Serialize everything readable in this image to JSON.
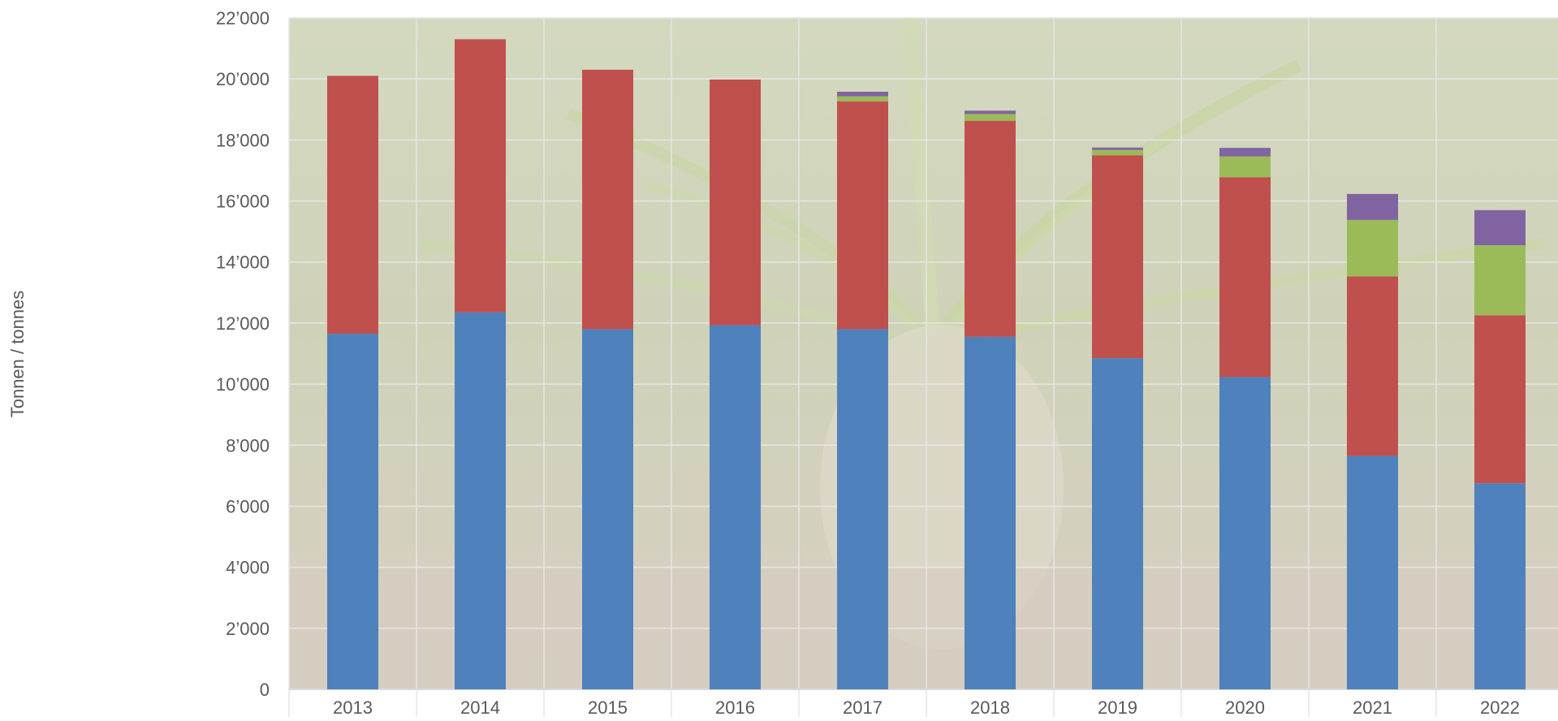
{
  "chart_data": {
    "type": "bar",
    "stacked": true,
    "categories": [
      "2013",
      "2014",
      "2015",
      "2016",
      "2017",
      "2018",
      "2019",
      "2020",
      "2021",
      "2022"
    ],
    "series": [
      {
        "color": "#4f81bd",
        "values": [
          11650,
          12350,
          11800,
          11930,
          11800,
          11550,
          10850,
          10230,
          7650,
          6750
        ]
      },
      {
        "color": "#c0504d",
        "values": [
          8450,
          8950,
          8500,
          8050,
          7460,
          7080,
          6650,
          6550,
          5880,
          5500
        ]
      },
      {
        "color": "#9bbb59",
        "values": [
          0,
          0,
          0,
          0,
          170,
          220,
          170,
          680,
          1850,
          2300
        ]
      },
      {
        "color": "#8064a2",
        "values": [
          0,
          0,
          0,
          0,
          150,
          110,
          80,
          280,
          850,
          1150
        ]
      }
    ],
    "ylabel": "Tonnen / tonnes",
    "ylim": [
      0,
      22000
    ],
    "yticks": [
      "0",
      "2’000",
      "4’000",
      "6’000",
      "8’000",
      "10’000",
      "12’000",
      "14’000",
      "16’000",
      "18’000",
      "20’000",
      "22’000"
    ],
    "grid": true,
    "legend": "none",
    "background": "photo of a sugar beet plant in soil, faded behind the plot area"
  }
}
